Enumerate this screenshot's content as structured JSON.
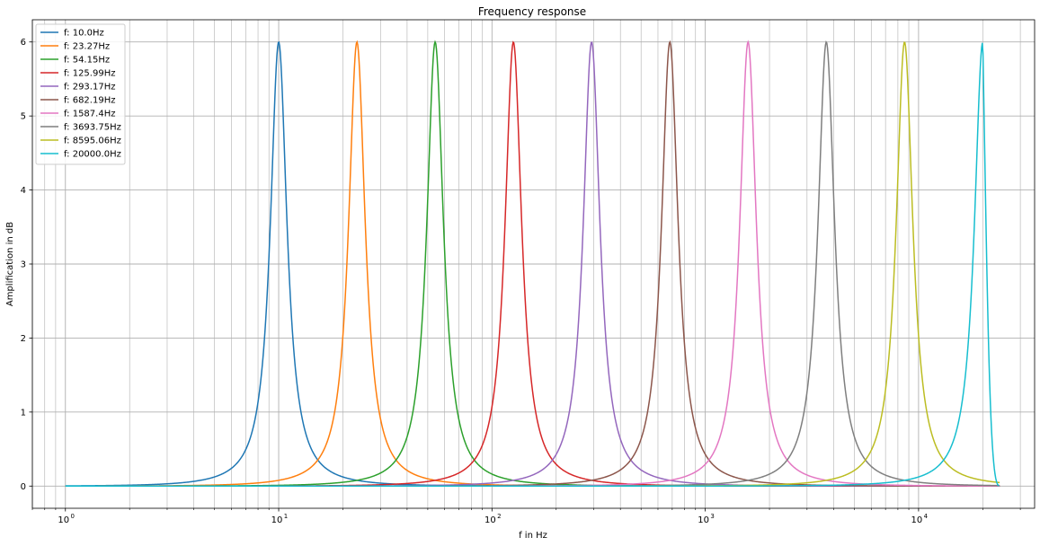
{
  "chart_data": {
    "type": "line",
    "title": "Frequency response",
    "xlabel": "f in Hz",
    "ylabel": "Amplification in dB",
    "x_scale": "log",
    "xlim": [
      0.7,
      35000
    ],
    "ylim": [
      -0.3,
      6.3
    ],
    "x_ticks": [
      {
        "value": 1,
        "label": "10",
        "exp": "0"
      },
      {
        "value": 10,
        "label": "10",
        "exp": "1"
      },
      {
        "value": 100,
        "label": "10",
        "exp": "2"
      },
      {
        "value": 1000,
        "label": "10",
        "exp": "3"
      },
      {
        "value": 10000,
        "label": "10",
        "exp": "4"
      }
    ],
    "y_ticks": [
      0,
      1,
      2,
      3,
      4,
      5,
      6
    ],
    "grid": true,
    "grid_minor_x": true,
    "legend_position": "top-left",
    "x_range": [
      1,
      24000
    ],
    "peak_gain_db": 6,
    "quality_factor": 4.6,
    "series": [
      {
        "name": "f: 10.0Hz",
        "center": 10.0,
        "color": "#1f77b4"
      },
      {
        "name": "f: 23.27Hz",
        "center": 23.27,
        "color": "#ff7f0e"
      },
      {
        "name": "f: 54.15Hz",
        "center": 54.15,
        "color": "#2ca02c"
      },
      {
        "name": "f: 125.99Hz",
        "center": 125.99,
        "color": "#d62728"
      },
      {
        "name": "f: 293.17Hz",
        "center": 293.17,
        "color": "#9467bd"
      },
      {
        "name": "f: 682.19Hz",
        "center": 682.19,
        "color": "#8c564b"
      },
      {
        "name": "f: 1587.4Hz",
        "center": 1587.4,
        "color": "#e377c2"
      },
      {
        "name": "f: 3693.75Hz",
        "center": 3693.75,
        "color": "#7f7f7f"
      },
      {
        "name": "f: 8595.06Hz",
        "center": 8595.06,
        "color": "#bcbd22"
      },
      {
        "name": "f: 20000.0Hz",
        "center": 20000.0,
        "color": "#17becf"
      }
    ]
  }
}
